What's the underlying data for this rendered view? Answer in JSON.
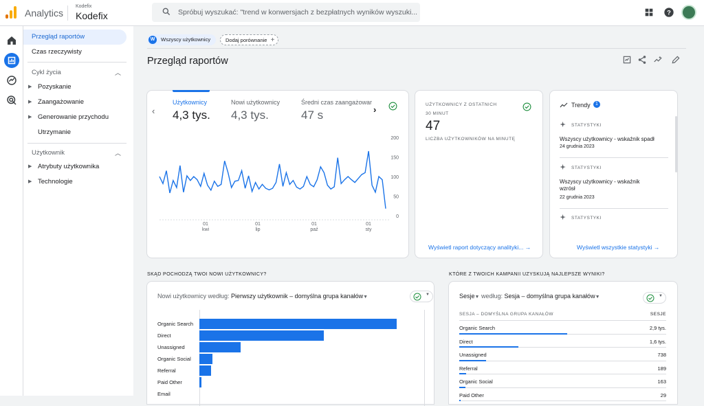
{
  "app": {
    "name": "Analytics",
    "account_small": "Kodefix",
    "account_big": "Kodefix"
  },
  "search": {
    "placeholder": "Spróbuj wyszukać: \"trend w konwersjach z bezpłatnych wyników wyszuki..."
  },
  "colors": {
    "accent": "#1a73e8",
    "logo_orange": "#f9ab00",
    "logo_dark_orange": "#e37400"
  },
  "sidebar": {
    "top_items": [
      {
        "label": "Przegląd raportów",
        "active": true
      },
      {
        "label": "Czas rzeczywisty",
        "active": false
      }
    ],
    "sections": [
      {
        "title": "Cykl życia",
        "items": [
          "Pozyskanie",
          "Zaangażowanie",
          "Generowanie przychodu",
          "Utrzymanie"
        ]
      },
      {
        "title": "Użytkownik",
        "items": [
          "Atrybuty użytkownika",
          "Technologie"
        ]
      }
    ]
  },
  "filters": {
    "user_chip": "Wszyscy użytkownicy",
    "user_chip_letter": "W",
    "add_comparison": "Dodaj porównanie"
  },
  "page": {
    "title": "Przegląd raportów"
  },
  "overview_card": {
    "tabs": [
      {
        "label": "Użytkownicy",
        "value": "4,3 tys.",
        "selected": true
      },
      {
        "label": "Nowi użytkownicy",
        "value": "4,3 tys.",
        "selected": false
      },
      {
        "label": "Średni czas zaangażowar",
        "value": "47 s",
        "selected": false
      }
    ]
  },
  "chart_data": {
    "type": "line",
    "title": "",
    "xlabel": "",
    "ylabel": "",
    "ylim": [
      0,
      200
    ],
    "yticks": [
      0,
      50,
      100,
      150,
      200
    ],
    "xticks": [
      {
        "day": "01",
        "month": "kwi"
      },
      {
        "day": "01",
        "month": "lip"
      },
      {
        "day": "01",
        "month": "paź"
      },
      {
        "day": "01",
        "month": "sty"
      }
    ],
    "series": [
      {
        "values": [
          100,
          82,
          115,
          58,
          90,
          72,
          128,
          60,
          102,
          90,
          100,
          92,
          75,
          108,
          78,
          65,
          88,
          75,
          80,
          140,
          110,
          72,
          88,
          90,
          115,
          70,
          102,
          62,
          85,
          68,
          80,
          70,
          66,
          70,
          85,
          132,
          75,
          110,
          80,
          90,
          73,
          68,
          75,
          100,
          80,
          74,
          92,
          125,
          110,
          78,
          68,
          74,
          148,
          82,
          92,
          100,
          92,
          85,
          95,
          105,
          110,
          165,
          78,
          60,
          100,
          92,
          18
        ]
      }
    ],
    "grid": false
  },
  "realtime_card": {
    "title_line1": "Użytkownicy z ostatnich",
    "title_line2": "30 minut",
    "value": "47",
    "subtitle": "Liczba użytkowników na minutę",
    "link": "Wyświetl raport dotyczący analityki..."
  },
  "trends_card": {
    "title": "Trendy",
    "badge": "1",
    "items": [
      {
        "tag": "Statystyki",
        "text": "Wszyscy użytkownicy - wskaźnik spadł",
        "date": "24 grudnia 2023"
      },
      {
        "tag": "Statystyki",
        "text": "Wszyscy użytkownicy - wskaźnik wzrósł",
        "date": "22 grudnia 2023"
      },
      {
        "tag": "Statystyki",
        "text": "",
        "date": ""
      }
    ],
    "link": "Wyświetl wszystkie statystyki"
  },
  "new_users_section": {
    "heading": "Skąd pochodzą Twoi nowi użytkownicy?",
    "dropdown_prefix": "Nowi użytkownicy według: ",
    "dropdown_value": "Pierwszy użytkownik – domyślna grupa kanałów",
    "bars": [
      {
        "label": "Organic Search",
        "value": 1.0
      },
      {
        "label": "Direct",
        "value": 0.63
      },
      {
        "label": "Unassigned",
        "value": 0.21
      },
      {
        "label": "Organic Social",
        "value": 0.065
      },
      {
        "label": "Referral",
        "value": 0.06
      },
      {
        "label": "Paid Other",
        "value": 0.012
      },
      {
        "label": "Email",
        "value": 0
      }
    ]
  },
  "campaigns_section": {
    "heading": "Które z Twoich kampanii uzyskują najlepsze wyniki?",
    "dropdown_metric": "Sesje",
    "dropdown_prefix": " według: ",
    "dropdown_value": "Sesja – domyślna grupa kanałów",
    "col_name": "Sesja – domyślna grupa kanałów",
    "col_value": "Sesje",
    "rows": [
      {
        "name": "Organic Search",
        "value": "2,9 tys.",
        "share": 1.0
      },
      {
        "name": "Direct",
        "value": "1,6 tys.",
        "share": 0.55
      },
      {
        "name": "Unassigned",
        "value": "738",
        "share": 0.25
      },
      {
        "name": "Referral",
        "value": "189",
        "share": 0.065
      },
      {
        "name": "Organic Social",
        "value": "163",
        "share": 0.056
      },
      {
        "name": "Paid Other",
        "value": "29",
        "share": 0.01
      }
    ]
  }
}
